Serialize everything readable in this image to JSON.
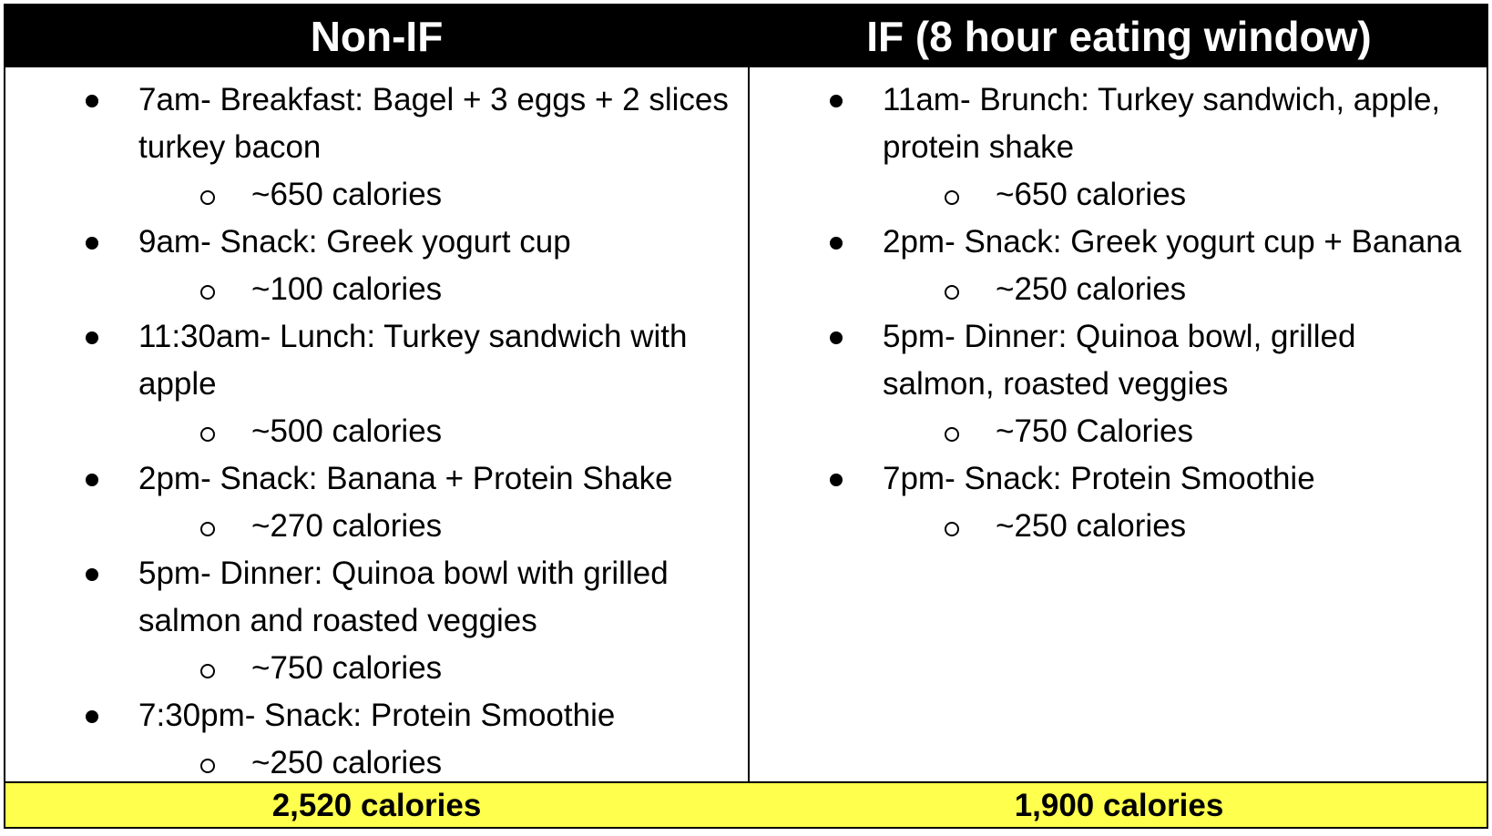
{
  "table": {
    "headers": [
      "Non-IF",
      "IF (8 hour eating window)"
    ],
    "columns": [
      {
        "meals": [
          {
            "text": "7am- Breakfast: Bagel + 3 eggs + 2 slices turkey bacon",
            "calories": "~650 calories"
          },
          {
            "text": "9am- Snack: Greek yogurt cup",
            "calories": "~100 calories"
          },
          {
            "text": "11:30am- Lunch: Turkey sandwich with apple",
            "calories": "~500 calories"
          },
          {
            "text": "2pm- Snack: Banana + Protein Shake",
            "calories": "~270 calories"
          },
          {
            "text": "5pm- Dinner: Quinoa bowl with grilled salmon and roasted veggies",
            "calories": "~750 calories"
          },
          {
            "text": "7:30pm- Snack: Protein Smoothie",
            "calories": "~250 calories"
          }
        ],
        "total": "2,520 calories"
      },
      {
        "meals": [
          {
            "text": "11am- Brunch: Turkey sandwich, apple, protein shake",
            "calories": "~650 calories"
          },
          {
            "text": "2pm- Snack: Greek yogurt cup + Banana",
            "calories": "~250 calories"
          },
          {
            "text": "5pm- Dinner: Quinoa bowl, grilled salmon, roasted veggies",
            "calories": "~750 Calories"
          },
          {
            "text": "7pm- Snack: Protein Smoothie",
            "calories": "~250 calories"
          }
        ],
        "total": "1,900 calories"
      }
    ]
  },
  "colors": {
    "header_bg": "#000000",
    "header_text": "#ffffff",
    "total_bg": "#ffff4d"
  }
}
